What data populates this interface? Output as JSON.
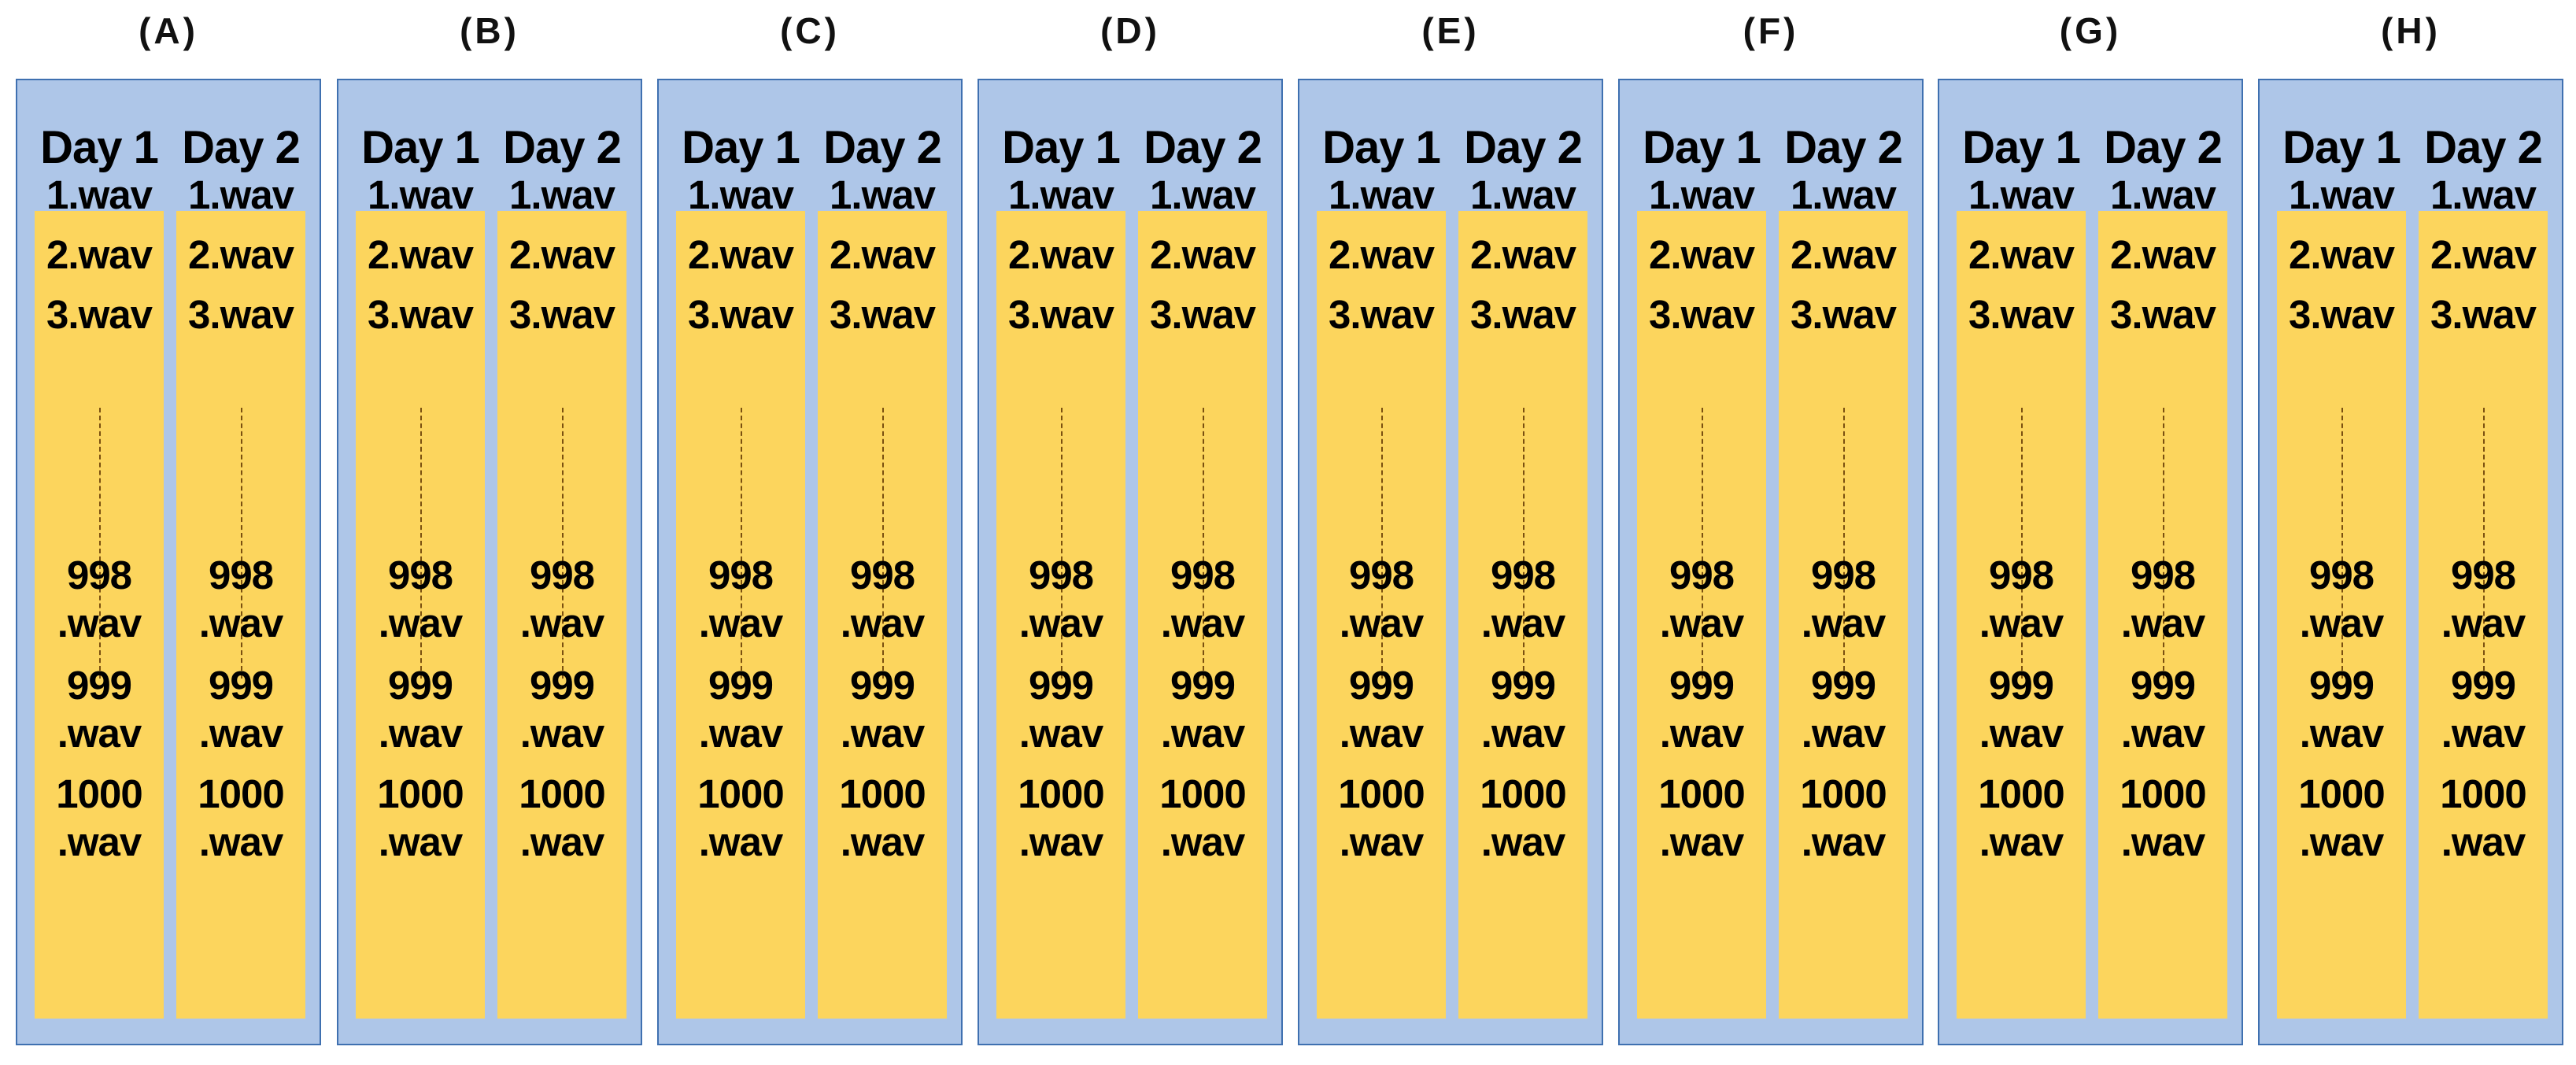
{
  "groups": [
    {
      "label": "(A)"
    },
    {
      "label": "(B)"
    },
    {
      "label": "(C)"
    },
    {
      "label": "(D)"
    },
    {
      "label": "(E)"
    },
    {
      "label": "(F)"
    },
    {
      "label": "(G)"
    },
    {
      "label": "(H)"
    }
  ],
  "days": [
    "Day 1",
    "Day 2"
  ],
  "files_top": [
    "1.wav",
    "2.wav",
    "3.wav"
  ],
  "files_bottom": [
    [
      "998",
      ".wav"
    ],
    [
      "999",
      ".wav"
    ],
    [
      "1000",
      ".wav"
    ]
  ],
  "colors": {
    "panel_fill": "#aec6e8",
    "panel_border": "#3f70b0",
    "column_fill": "#fcd55d",
    "ellipsis_line": "#7a5010"
  }
}
